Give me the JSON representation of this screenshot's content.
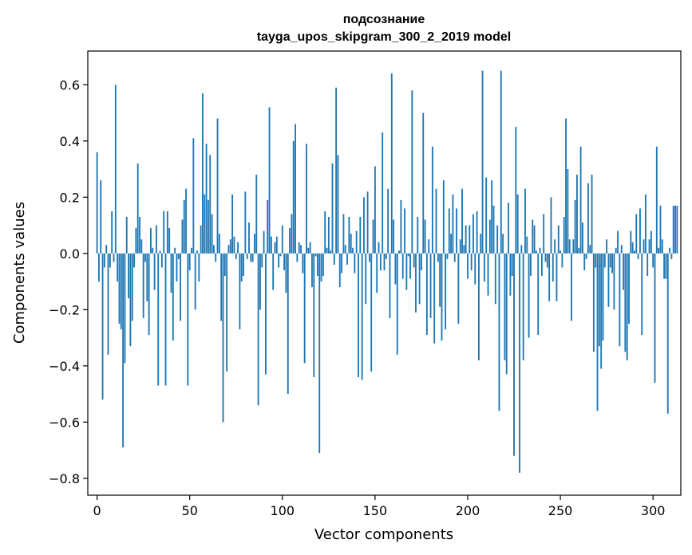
{
  "chart_data": {
    "type": "bar",
    "title": "подсознание",
    "subtitle": "tayga_upos_skipgram_300_2_2019 model",
    "xlabel": "Vector components",
    "ylabel": "Components values",
    "xlim": [
      -5,
      315
    ],
    "ylim": [
      -0.86,
      0.72
    ],
    "xticks": [
      0,
      50,
      100,
      150,
      200,
      250,
      300
    ],
    "xtick_labels": [
      "0",
      "50",
      "100",
      "150",
      "200",
      "250",
      "300"
    ],
    "yticks": [
      -0.8,
      -0.6,
      -0.4,
      -0.2,
      0.0,
      0.2,
      0.4,
      0.6
    ],
    "ytick_labels": [
      "−0.8",
      "−0.6",
      "−0.4",
      "−0.2",
      "0.0",
      "0.2",
      "0.4",
      "0.6"
    ],
    "color": "#1f77b4",
    "values": [
      0.36,
      -0.1,
      0.26,
      -0.52,
      -0.05,
      0.03,
      -0.36,
      -0.05,
      0.15,
      -0.03,
      0.6,
      -0.1,
      -0.25,
      -0.27,
      -0.69,
      -0.39,
      0.13,
      -0.16,
      -0.33,
      -0.24,
      -0.05,
      0.09,
      0.32,
      0.13,
      0.05,
      -0.23,
      -0.03,
      -0.17,
      -0.29,
      0.09,
      0.02,
      -0.13,
      0.1,
      -0.47,
      0.01,
      -0.05,
      0.15,
      -0.47,
      0.15,
      0.09,
      -0.14,
      -0.31,
      0.02,
      -0.1,
      -0.02,
      -0.24,
      0.12,
      0.19,
      0.23,
      -0.47,
      -0.06,
      0.02,
      0.41,
      -0.2,
      0.01,
      -0.1,
      0.1,
      0.57,
      0.21,
      0.39,
      0.19,
      0.35,
      0.14,
      0.03,
      -0.03,
      0.48,
      0.07,
      -0.24,
      -0.6,
      -0.08,
      -0.42,
      0.03,
      0.05,
      0.21,
      0.06,
      -0.02,
      0.04,
      -0.27,
      -0.1,
      -0.08,
      0.22,
      -0.02,
      0.11,
      -0.03,
      -0.03,
      0.07,
      0.28,
      -0.54,
      -0.2,
      -0.05,
      0.08,
      -0.43,
      0.19,
      0.52,
      0.06,
      -0.13,
      0.04,
      0.06,
      -0.05,
      -0.01,
      0.1,
      -0.06,
      -0.14,
      -0.5,
      0.09,
      0.14,
      0.4,
      0.46,
      -0.03,
      0.04,
      0.03,
      -0.07,
      -0.39,
      0.39,
      0.02,
      0.04,
      -0.12,
      -0.44,
      -0.01,
      -0.08,
      -0.71,
      -0.1,
      -0.08,
      0.15,
      0.02,
      0.13,
      0.01,
      0.32,
      -0.04,
      0.59,
      0.35,
      -0.12,
      -0.07,
      0.14,
      0.03,
      -0.04,
      0.13,
      0.07,
      0.02,
      -0.07,
      0.08,
      -0.44,
      0.13,
      -0.45,
      0.2,
      -0.18,
      0.22,
      -0.03,
      -0.42,
      0.12,
      0.31,
      -0.14,
      0.04,
      -0.06,
      0.43,
      -0.06,
      -0.02,
      0.23,
      -0.23,
      0.64,
      0.12,
      -0.11,
      -0.36,
      0.01,
      0.19,
      -0.09,
      0.16,
      -0.13,
      -0.01,
      -0.09,
      0.58,
      -0.05,
      -0.21,
      0.13,
      -0.18,
      -0.06,
      0.5,
      0.12,
      -0.29,
      0.05,
      -0.23,
      0.38,
      -0.32,
      0.23,
      -0.03,
      -0.19,
      -0.31,
      0.26,
      -0.27,
      -0.02,
      0.16,
      0.07,
      0.21,
      -0.03,
      0.16,
      -0.25,
      0.05,
      0.23,
      0.03,
      0.1,
      -0.09,
      0.1,
      -0.06,
      0.14,
      -0.11,
      0.15,
      -0.38,
      0.07,
      0.65,
      -0.1,
      0.27,
      -0.15,
      0.12,
      0.26,
      0.17,
      -0.18,
      0.1,
      -0.56,
      0.65,
      0.07,
      -0.38,
      -0.43,
      0.18,
      -0.15,
      -0.08,
      -0.72,
      0.45,
      0.21,
      -0.78,
      0.03,
      -0.38,
      0.23,
      0.06,
      -0.3,
      -0.08,
      0.12,
      0.1,
      0.01,
      -0.29,
      0.02,
      -0.08,
      0.14,
      -0.03,
      -0.05,
      -0.17,
      0.2,
      -0.1,
      0.05,
      -0.17,
      0.1,
      0.01,
      -0.05,
      0.13,
      0.48,
      0.3,
      0.05,
      -0.24,
      0.05,
      0.19,
      0.28,
      0.02,
      0.38,
      0.11,
      -0.06,
      -0.02,
      0.25,
      0.03,
      0.28,
      -0.35,
      -0.05,
      -0.56,
      -0.33,
      -0.41,
      -0.31,
      -0.05,
      0.05,
      -0.19,
      -0.05,
      -0.07,
      -0.2,
      0.02,
      0.08,
      -0.33,
      0.03,
      -0.13,
      -0.35,
      -0.38,
      -0.25,
      0.08,
      0.04,
      0.01,
      0.14,
      -0.02,
      0.16,
      -0.29,
      0.05,
      0.21,
      -0.08,
      0.05,
      0.08,
      -0.05,
      -0.46,
      0.38,
      0.02,
      0.17,
      0.05,
      -0.09,
      -0.09,
      -0.57,
      0.02,
      -0.02,
      0.17,
      0.17,
      0.17
    ]
  }
}
